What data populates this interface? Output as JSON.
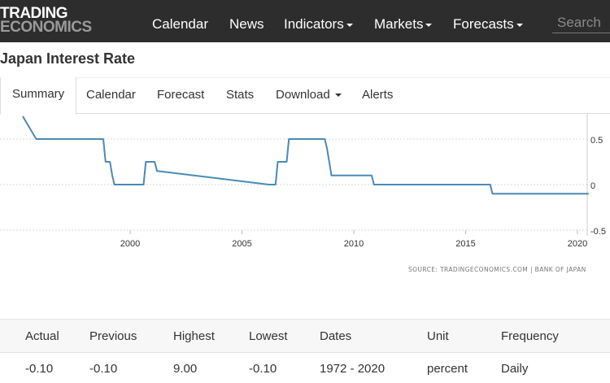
{
  "logo": {
    "line1": "TRADING",
    "line2": "ECONOMICS"
  },
  "nav": {
    "items": [
      {
        "label": "Calendar",
        "dropdown": false
      },
      {
        "label": "News",
        "dropdown": false
      },
      {
        "label": "Indicators",
        "dropdown": true
      },
      {
        "label": "Markets",
        "dropdown": true
      },
      {
        "label": "Forecasts",
        "dropdown": true
      }
    ],
    "search_placeholder": "Search"
  },
  "page_title": "Japan Interest Rate",
  "tabs": [
    {
      "label": "Summary",
      "active": true,
      "dropdown": false
    },
    {
      "label": "Calendar",
      "active": false,
      "dropdown": false
    },
    {
      "label": "Forecast",
      "active": false,
      "dropdown": false
    },
    {
      "label": "Stats",
      "active": false,
      "dropdown": false
    },
    {
      "label": "Download",
      "active": false,
      "dropdown": true
    },
    {
      "label": "Alerts",
      "active": false,
      "dropdown": false
    }
  ],
  "chart_data": {
    "type": "line",
    "x_ticks": [
      "2000",
      "2005",
      "2010",
      "2015",
      "2020"
    ],
    "y_ticks": [
      "0.5",
      "0",
      "-0.5"
    ],
    "ylim": [
      -0.5,
      0.5
    ],
    "xlim": [
      1995.2,
      2020.5
    ],
    "grid": "horizontal-dashed",
    "line_color": "#4a8ab8",
    "series": [
      {
        "x": [
          1995.2,
          1995.8,
          1998.8,
          1998.9,
          1999.1,
          1999.2,
          1999.3,
          2000.6,
          2000.7,
          2001.1,
          2001.2,
          2006.2,
          2006.5,
          2006.6,
          2007.0,
          2007.1,
          2008.7,
          2008.8,
          2008.9,
          2009.0,
          2010.8,
          2010.9,
          2016.1,
          2016.2,
          2020.5
        ],
        "y": [
          0.75,
          0.5,
          0.5,
          0.25,
          0.25,
          0.1,
          0.0,
          0.0,
          0.25,
          0.25,
          0.15,
          0.0,
          0.0,
          0.25,
          0.25,
          0.5,
          0.5,
          0.4,
          0.25,
          0.1,
          0.1,
          0.0,
          0.0,
          -0.1,
          -0.1
        ]
      }
    ]
  },
  "source_text": "SOURCE: TRADINGECONOMICS.COM  |  BANK OF JAPAN",
  "stats": {
    "headers": [
      "Actual",
      "Previous",
      "Highest",
      "Lowest",
      "Dates",
      "Unit",
      "Frequency"
    ],
    "values": [
      "-0.10",
      "-0.10",
      "9.00",
      "-0.10",
      "1972 - 2020",
      "percent",
      "Daily"
    ]
  }
}
